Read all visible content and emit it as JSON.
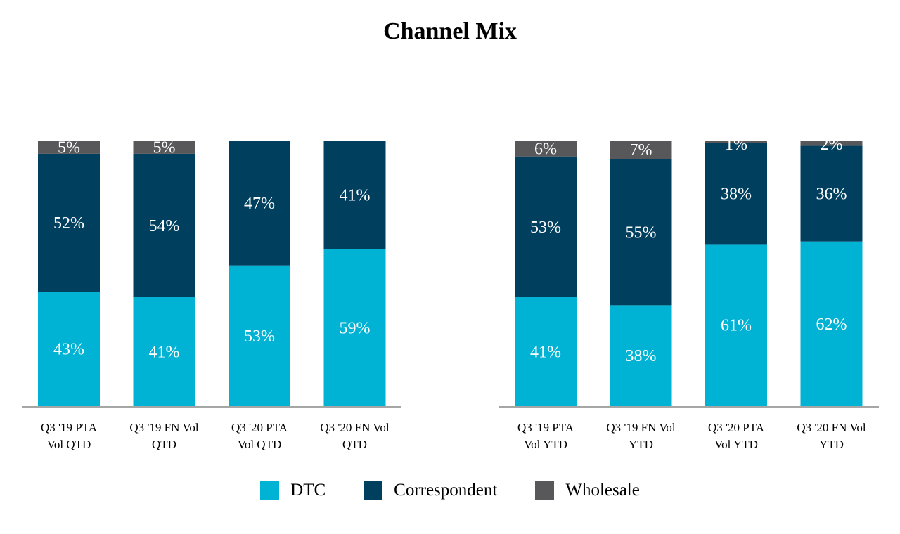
{
  "chart_data": {
    "type": "bar",
    "stacked": true,
    "normalized": true,
    "title": "Channel Mix",
    "xlabel": "",
    "ylabel": "",
    "ylim": [
      0,
      100
    ],
    "grid": false,
    "legend_position": "bottom",
    "groups": [
      {
        "name": "QTD",
        "categories": [
          [
            "Q3 '19 PTA",
            "Vol QTD"
          ],
          [
            "Q3 '19 FN Vol",
            "QTD"
          ],
          [
            "Q3 '20 PTA",
            "Vol QTD"
          ],
          [
            "Q3 '20 FN Vol",
            "QTD"
          ]
        ]
      },
      {
        "name": "YTD",
        "categories": [
          [
            "Q3 '19 PTA",
            "Vol YTD"
          ],
          [
            "Q3 '19 FN Vol",
            "YTD"
          ],
          [
            "Q3 '20 PTA",
            "Vol YTD"
          ],
          [
            "Q3 '20 FN Vol",
            "YTD"
          ]
        ]
      }
    ],
    "series": [
      {
        "name": "DTC",
        "color": "#00B2D3",
        "values": [
          43,
          41,
          53,
          59,
          41,
          38,
          61,
          62
        ],
        "labels": [
          "43%",
          "41%",
          "53%",
          "59%",
          "41%",
          "38%",
          "61%",
          "62%"
        ]
      },
      {
        "name": "Correspondent",
        "color": "#003F5E",
        "values": [
          52,
          54,
          47,
          41,
          53,
          55,
          38,
          36
        ],
        "labels": [
          "52%",
          "54%",
          "47%",
          "41%",
          "53%",
          "55%",
          "38%",
          "36%"
        ]
      },
      {
        "name": "Wholesale",
        "color": "#58585B",
        "values": [
          5,
          5,
          0,
          0,
          6,
          7,
          1,
          2
        ],
        "labels": [
          "5%",
          "5%",
          "",
          "",
          "6%",
          "7%",
          "1%",
          "2%"
        ]
      }
    ],
    "axis_color": "#A6A6A6",
    "label_color": "#FFFFFF"
  },
  "legend": [
    {
      "label": "DTC",
      "color": "#00B2D3"
    },
    {
      "label": "Correspondent",
      "color": "#003F5E"
    },
    {
      "label": "Wholesale",
      "color": "#58585B"
    }
  ]
}
